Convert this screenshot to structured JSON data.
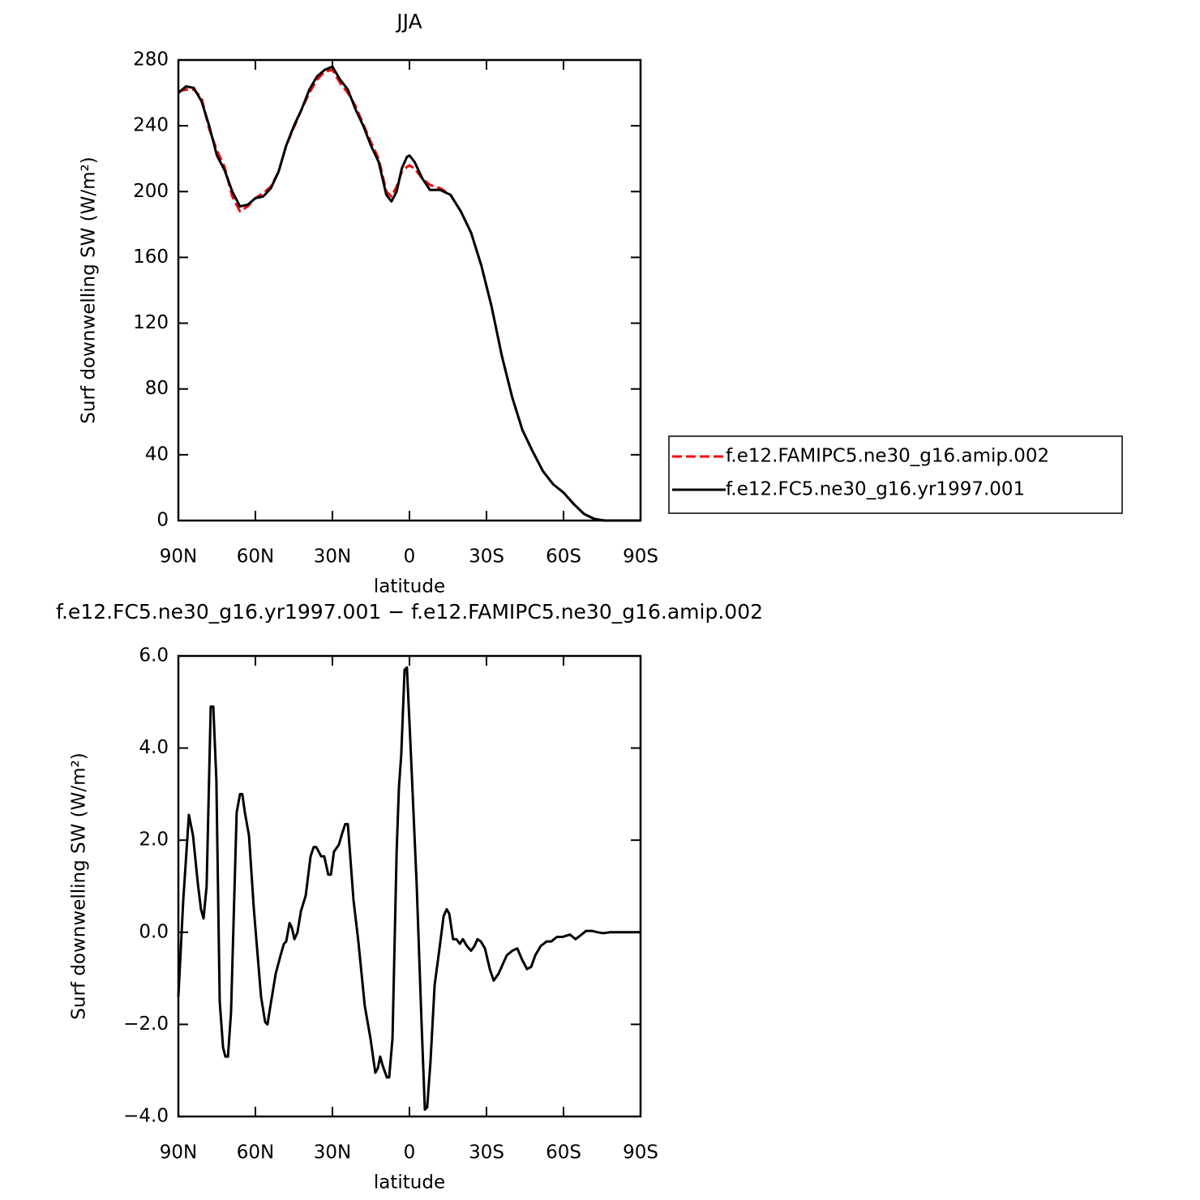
{
  "chart_data": [
    {
      "type": "line",
      "title": "JJA",
      "xlabel": "latitude",
      "ylabel": "Surf downwelling SW (W/m²)",
      "xlim": [
        90,
        -90
      ],
      "xticks": [
        {
          "value": 90,
          "label": "90N"
        },
        {
          "value": 60,
          "label": "60N"
        },
        {
          "value": 30,
          "label": "30N"
        },
        0,
        {
          "value": -30,
          "label": "30S"
        },
        {
          "value": -60,
          "label": "60S"
        },
        {
          "value": -90,
          "label": "90S"
        }
      ],
      "ylim": [
        0,
        280
      ],
      "yticks": [
        0,
        40,
        80,
        120,
        160,
        200,
        240,
        280
      ],
      "legend": "right",
      "x": [
        90,
        87,
        84,
        81,
        78,
        75,
        72,
        69,
        66,
        63,
        60,
        57,
        54,
        51,
        48,
        45,
        42,
        39,
        36,
        33,
        30,
        27,
        24,
        21,
        18,
        15,
        12,
        9,
        7,
        5,
        3,
        1,
        0,
        -2,
        -5,
        -8,
        -12,
        -16,
        -20,
        -24,
        -28,
        -32,
        -36,
        -40,
        -44,
        -48,
        -52,
        -56,
        -60,
        -64,
        -68,
        -72,
        -76,
        -80,
        -84,
        -90
      ],
      "series": [
        {
          "name": "f.e12.FAMIPC5.ne30_g16.amip.002",
          "color": "#ff0000",
          "line_style": "dashed",
          "values": [
            261,
            262,
            262,
            257,
            238,
            225,
            215,
            197,
            188,
            191,
            196,
            199,
            203,
            212,
            228,
            239,
            250,
            260,
            268,
            273,
            274,
            266,
            260,
            252,
            241,
            230,
            220,
            200,
            197,
            203,
            212,
            215,
            216,
            214,
            208,
            204,
            202,
            198,
            188,
            175,
            155,
            130,
            100,
            75,
            55,
            42,
            30,
            22,
            17,
            10,
            4,
            1,
            0,
            0,
            0,
            0
          ]
        },
        {
          "name": "f.e12.FC5.ne30_g16.yr1997.001",
          "color": "#000000",
          "line_style": "solid",
          "values": [
            260,
            264,
            263,
            255,
            240,
            222,
            213,
            200,
            191,
            192,
            196,
            197,
            202,
            212,
            228,
            240,
            250,
            262,
            270,
            274,
            276,
            268,
            262,
            250,
            240,
            228,
            218,
            198,
            194,
            200,
            214,
            221,
            222,
            218,
            208,
            201,
            201,
            198,
            188,
            175,
            155,
            130,
            100,
            75,
            55,
            42,
            30,
            22,
            17,
            10,
            4,
            1,
            0,
            0,
            0,
            0
          ]
        }
      ]
    },
    {
      "type": "line",
      "title": "f.e12.FC5.ne30_g16.yr1997.001 − f.e12.FAMIPC5.ne30_g16.amip.002",
      "xlabel": "latitude",
      "ylabel": "Surf downwelling SW (W/m²)",
      "xlim": [
        90,
        -90
      ],
      "xticks": [
        {
          "value": 90,
          "label": "90N"
        },
        {
          "value": 60,
          "label": "60N"
        },
        {
          "value": 30,
          "label": "30N"
        },
        0,
        {
          "value": -30,
          "label": "30S"
        },
        {
          "value": -60,
          "label": "60S"
        },
        {
          "value": -90,
          "label": "90S"
        }
      ],
      "ylim": [
        -4,
        6
      ],
      "yticks": [
        {
          "value": -4,
          "label": "−4.0"
        },
        {
          "value": -2,
          "label": "−2.0"
        },
        {
          "value": 0,
          "label": "0.0"
        },
        {
          "value": 2,
          "label": "2.0"
        },
        {
          "value": 4,
          "label": "4.0"
        },
        {
          "value": 6,
          "label": "6.0"
        }
      ],
      "x": [
        90,
        88.1,
        85.9,
        84.3,
        82.4,
        81.2,
        80.2,
        79,
        77.4,
        76.4,
        75.2,
        73.9,
        72.6,
        71.7,
        70.7,
        69.5,
        67.3,
        66,
        65.1,
        64.1,
        62.5,
        60.6,
        57.8,
        56.2,
        55.3,
        54.3,
        52.1,
        50.2,
        48.9,
        48,
        46.7,
        45.8,
        44.8,
        43.6,
        42.3,
        40.4,
        38.5,
        37.3,
        36.3,
        34.4,
        33.2,
        31.6,
        30.6,
        29.4,
        27.5,
        26.2,
        25,
        24,
        21.8,
        19.9,
        17.4,
        15.2,
        13.3,
        12.3,
        11.4,
        10.4,
        8.8,
        7.9,
        6.6,
        5,
        4.1,
        3.2,
        1.9,
        1,
        -0.3,
        -2.8,
        -4.7,
        -6,
        -6.9,
        -8.2,
        -9.8,
        -11.7,
        -13.3,
        -14.5,
        -15.5,
        -17,
        -18.3,
        -19.6,
        -20.8,
        -22.4,
        -24,
        -25.3,
        -26.5,
        -27.8,
        -29.4,
        -31.3,
        -32.8,
        -34.7,
        -36.3,
        -37.9,
        -40.1,
        -42,
        -43.9,
        -45.8,
        -47.4,
        -49,
        -51.1,
        -53.4,
        -55.2,
        -57.5,
        -59.7,
        -62.5,
        -64.7,
        -67,
        -68.8,
        -71,
        -73.3,
        -75.5,
        -78,
        -90
      ],
      "series": [
        {
          "color": "#000000",
          "line_style": "solid",
          "values": [
            -1.4,
            0.7,
            2.55,
            2.1,
            1.05,
            0.5,
            0.3,
            1.0,
            4.9,
            4.9,
            3.3,
            -1.5,
            -2.5,
            -2.7,
            -2.7,
            -1.75,
            2.6,
            3.0,
            3.0,
            2.6,
            2.1,
            0.5,
            -1.4,
            -1.95,
            -2.0,
            -1.65,
            -0.9,
            -0.5,
            -0.25,
            -0.2,
            0.2,
            0.1,
            -0.15,
            0,
            0.45,
            0.8,
            1.65,
            1.85,
            1.85,
            1.65,
            1.65,
            1.25,
            1.25,
            1.75,
            1.9,
            2.15,
            2.35,
            2.35,
            0.7,
            -0.2,
            -1.6,
            -2.3,
            -3.05,
            -2.95,
            -2.7,
            -2.9,
            -3.15,
            -3.15,
            -2.3,
            1.75,
            3.15,
            3.85,
            5.7,
            5.75,
            4.2,
            1.05,
            -1.95,
            -3.85,
            -3.8,
            -2.8,
            -1.15,
            -0.35,
            0.35,
            0.5,
            0.4,
            -0.15,
            -0.15,
            -0.25,
            -0.15,
            -0.3,
            -0.4,
            -0.3,
            -0.15,
            -0.2,
            -0.35,
            -0.8,
            -1.05,
            -0.9,
            -0.7,
            -0.5,
            -0.4,
            -0.35,
            -0.6,
            -0.8,
            -0.75,
            -0.5,
            -0.3,
            -0.2,
            -0.2,
            -0.1,
            -0.1,
            -0.05,
            -0.15,
            -0.05,
            0.03,
            0.03,
            0,
            -0.02,
            0,
            0
          ]
        }
      ]
    }
  ]
}
